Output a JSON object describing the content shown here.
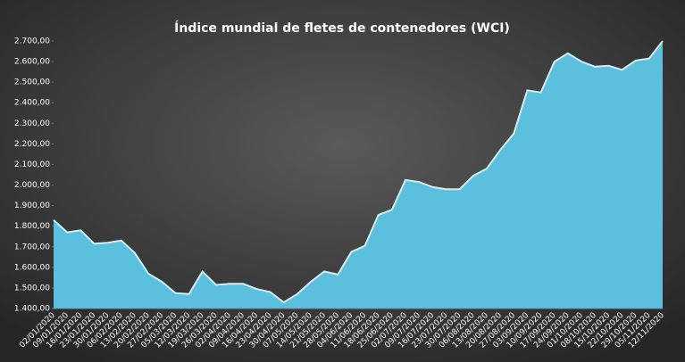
{
  "chart_data": {
    "type": "area",
    "title": "Índice mundial de fletes de contenedores (WCI)",
    "categories": [
      "02/01/2020",
      "09/01/2020",
      "16/01/2020",
      "23/01/2020",
      "30/01/2020",
      "06/02/2020",
      "13/02/2020",
      "20/02/2020",
      "27/02/2020",
      "05/03/2020",
      "12/03/2020",
      "19/03/2020",
      "26/03/2020",
      "02/04/2020",
      "09/04/2020",
      "16/04/2020",
      "23/04/2020",
      "30/04/2020",
      "07/05/2020",
      "14/05/2020",
      "21/05/2020",
      "28/05/2020",
      "04/06/2020",
      "11/06/2020",
      "18/06/2020",
      "25/06/2020",
      "02/07/2020",
      "09/07/2020",
      "16/07/2020",
      "23/07/2020",
      "30/07/2020",
      "06/08/2020",
      "13/08/2020",
      "20/08/2020",
      "27/08/2020",
      "03/09/2020",
      "10/09/2020",
      "17/09/2020",
      "24/09/2020",
      "01/10/2020",
      "08/10/2020",
      "15/10/2020",
      "22/10/2020",
      "29/10/2020",
      "05/11/2020",
      "12/11/2020"
    ],
    "values": [
      1830,
      1770,
      1780,
      1715,
      1720,
      1730,
      1670,
      1570,
      1530,
      1475,
      1470,
      1580,
      1515,
      1520,
      1520,
      1495,
      1480,
      1430,
      1470,
      1530,
      1580,
      1565,
      1675,
      1705,
      1855,
      1880,
      2025,
      2015,
      1990,
      1980,
      1980,
      2045,
      2080,
      2170,
      2250,
      2460,
      2450,
      2600,
      2640,
      2600,
      2575,
      2580,
      2560,
      2605,
      2615,
      2700
    ],
    "color": "#5bc0de",
    "ylim": [
      1400,
      2700
    ],
    "yticks": [
      {
        "value": 1400,
        "label": "1.400,00"
      },
      {
        "value": 1500,
        "label": "1.500,00"
      },
      {
        "value": 1600,
        "label": "1.600,00"
      },
      {
        "value": 1700,
        "label": "1.700,00"
      },
      {
        "value": 1800,
        "label": "1.800,00"
      },
      {
        "value": 1900,
        "label": "1.900,00"
      },
      {
        "value": 2000,
        "label": "2.000,00"
      },
      {
        "value": 2100,
        "label": "2.100,00"
      },
      {
        "value": 2200,
        "label": "2.200,00"
      },
      {
        "value": 2300,
        "label": "2.300,00"
      },
      {
        "value": 2400,
        "label": "2.400,00"
      },
      {
        "value": 2500,
        "label": "2.500,00"
      },
      {
        "value": 2600,
        "label": "2.600,00"
      },
      {
        "value": 2700,
        "label": "2.700,00"
      }
    ]
  }
}
